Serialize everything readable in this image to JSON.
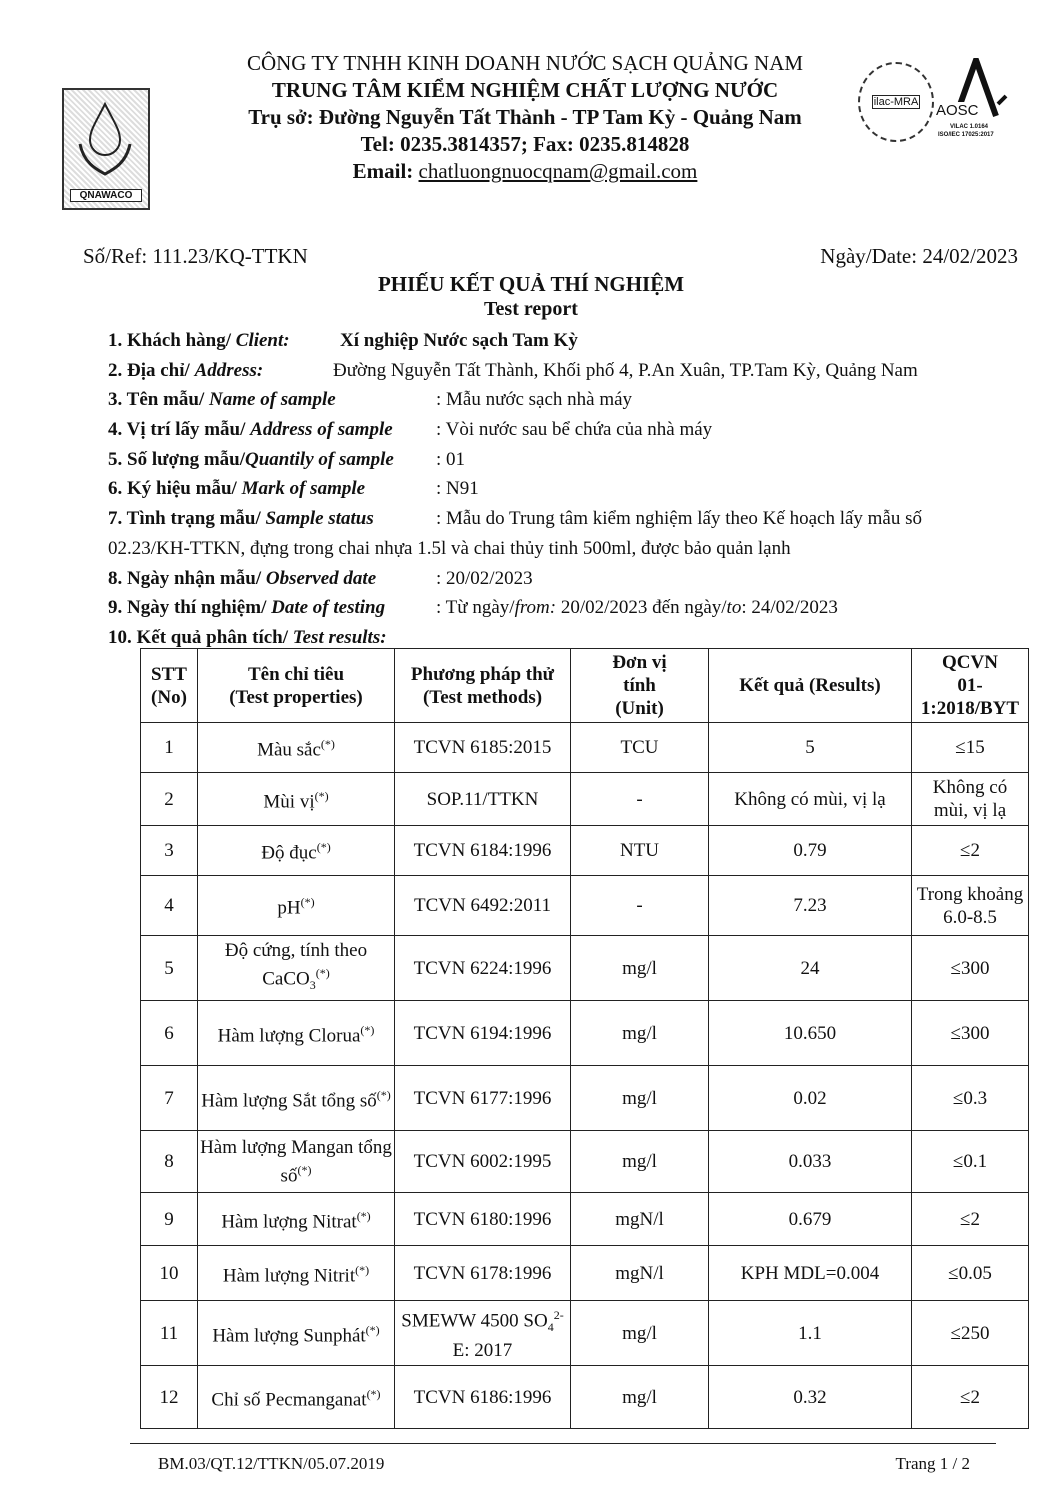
{
  "header": {
    "company": "CÔNG TY TNHH KINH DOANH NƯỚC SẠCH QUẢNG NAM",
    "center": "TRUNG TÂM KIỂM NGHIỆM CHẤT LƯỢNG NƯỚC",
    "address": "Trụ sở: Đường Nguyễn Tất Thành - TP Tam Kỳ -  Quảng Nam",
    "phone": "Tel: 0235.3814357; Fax: 0235.814828",
    "email_label": "Email:",
    "email": "chatluongnuocqnam@gmail.com",
    "logo_left": "QNAWACO",
    "logo_ilac": "ilac-MRA",
    "logo_aosc": "AOSC",
    "aosc_line1": "VILAC 1.0164",
    "aosc_line2": "ISO/IEC 17025:2017"
  },
  "ref": "Số/Ref: 111.23/KQ-TTKN",
  "date": "Ngày/Date: 24/02/2023",
  "title": "PHIẾU KẾT QUẢ THÍ NGHIỆM",
  "subtitle": "Test report",
  "info": [
    {
      "label": "1. Khách hàng/ ",
      "label_en": "Client:",
      "value": "Xí nghiệp Nước sạch Tam Kỳ"
    },
    {
      "label": "2. Địa chỉ/ ",
      "label_en": "Address:",
      "value": "Đường Nguyễn Tất Thành, Khối phố 4, P.An Xuân, TP.Tam Kỳ, Quảng Nam"
    },
    {
      "label": "3. Tên mẫu/ ",
      "label_en": "Name of sample",
      "value": ": Mẫu nước sạch nhà máy"
    },
    {
      "label": "4. Vị trí lấy mẫu/ ",
      "label_en": "Address of sample",
      "value": ": Vòi nước sau bể chứa của nhà máy"
    },
    {
      "label": "5. Số lượng mẫu/",
      "label_en": "Quantily of sample",
      "value": ": 01"
    },
    {
      "label": "6. Ký hiệu mẫu/ ",
      "label_en": "Mark of sample",
      "value": ": N91"
    },
    {
      "label": "7. Tình trạng mẫu/ ",
      "label_en": "Sample status",
      "value": ": Mẫu do Trung tâm kiểm nghiệm lấy theo Kế hoạch lấy mẫu số",
      "value2": "02.23/KH-TTKN, đựng trong chai nhựa 1.5l và chai thủy tinh 500ml, được bảo quản lạnh"
    },
    {
      "label": "8. Ngày nhận mẫu/ ",
      "label_en": "Observed date",
      "value": ": 20/02/2023"
    },
    {
      "label": "9. Ngày thí nghiệm/ ",
      "label_en": "Date of testing",
      "value": ": Từ ngày/",
      "value_from": "from:",
      "value_mid": " 20/02/2023  đến ngày/",
      "value_to": "to",
      "value_end": ": 24/02/2023"
    },
    {
      "label": "10. Kết quả phân tích/ ",
      "label_en": "Test results:"
    }
  ],
  "table": {
    "headers": [
      [
        "STT",
        "(No)"
      ],
      [
        "Tên chỉ tiêu",
        "(Test properties)"
      ],
      [
        "Phương pháp thử",
        "(Test methods)"
      ],
      [
        "Đơn vị",
        "tính",
        "(Unit)"
      ],
      [
        "Kết quả (Results)"
      ],
      [
        "QCVN",
        "01-",
        "1:2018/BYT"
      ]
    ],
    "rows": [
      {
        "no": "1",
        "name": "Màu sắc",
        "sup": "(*)",
        "method": "TCVN 6185:2015",
        "unit": "TCU",
        "result": "5",
        "limit": "≤15"
      },
      {
        "no": "2",
        "name": "Mùi vị",
        "sup": "(*)",
        "method": "SOP.11/TTKN",
        "unit": "-",
        "result": "Không có mùi, vị lạ",
        "limit": "Không có mùi, vị lạ"
      },
      {
        "no": "3",
        "name": "Độ đục",
        "sup": "(*)",
        "method": "TCVN 6184:1996",
        "unit": "NTU",
        "result": "0.79",
        "limit": "≤2"
      },
      {
        "no": "4",
        "name": "pH",
        "sup": "(*)",
        "method": "TCVN 6492:2011",
        "unit": "-",
        "result": "7.23",
        "limit": "Trong khoảng 6.0-8.5"
      },
      {
        "no": "5",
        "name": "Độ cứng, tính theo CaCO",
        "sub": "3",
        "sup": "(*)",
        "method": "TCVN 6224:1996",
        "unit": "mg/l",
        "result": "24",
        "limit": "≤300"
      },
      {
        "no": "6",
        "name": "Hàm lượng Clorua",
        "sup": "(*)",
        "method": "TCVN 6194:1996",
        "unit": "mg/l",
        "result": "10.650",
        "limit": "≤300"
      },
      {
        "no": "7",
        "name": "Hàm lượng Sắt tổng số",
        "sup": "(*)",
        "method": "TCVN 6177:1996",
        "unit": "mg/l",
        "result": "0.02",
        "limit": "≤0.3"
      },
      {
        "no": "8",
        "name": "Hàm lượng Mangan tổng số",
        "sup": "(*)",
        "method": "TCVN 6002:1995",
        "unit": "mg/l",
        "result": "0.033",
        "limit": "≤0.1"
      },
      {
        "no": "9",
        "name": "Hàm lượng Nitrat",
        "sup": "(*)",
        "method": "TCVN 6180:1996",
        "unit": "mgN/l",
        "result": "0.679",
        "limit": "≤2"
      },
      {
        "no": "10",
        "name": "Hàm lượng Nitrit",
        "sup": "(*)",
        "method": "TCVN 6178:1996",
        "unit": "mgN/l",
        "result": "KPH MDL=0.004",
        "limit": "≤0.05"
      },
      {
        "no": "11",
        "name": "Hàm lượng Sunphát",
        "sup": "(*)",
        "method": "SMEWW 4500 SO",
        "method_sub": "4",
        "method_sup": "2-",
        "method_end": "E: 2017",
        "unit": "mg/l",
        "result": "1.1",
        "limit": "≤250"
      },
      {
        "no": "12",
        "name": "Chỉ số Pecmanganat",
        "sup": "(*)",
        "method": "TCVN 6186:1996",
        "unit": "mg/l",
        "result": "0.32",
        "limit": "≤2"
      }
    ]
  },
  "footer": {
    "code": "BM.03/QT.12/TTKN/05.07.2019",
    "page": "Trang 1 / 2"
  }
}
